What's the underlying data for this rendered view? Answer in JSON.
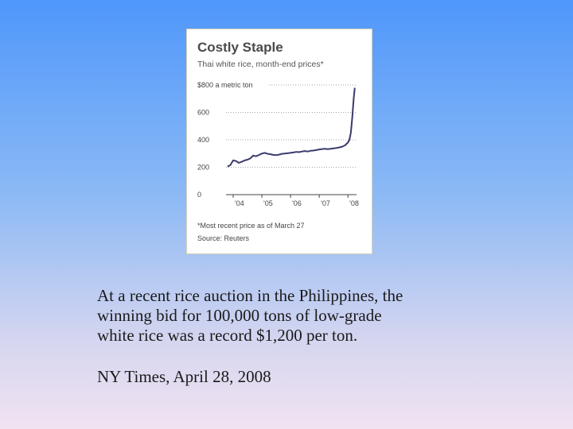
{
  "chart_data": {
    "type": "line",
    "title": "Costly Staple",
    "subtitle": "Thai white rice, month-end prices*",
    "ylabel": "",
    "xlabel": "",
    "ylim": [
      0,
      800
    ],
    "yticks": [
      0,
      200,
      400,
      600,
      800
    ],
    "ytick_labels": [
      "0",
      "200",
      "400",
      "600",
      "$800 a metric ton"
    ],
    "xlim": [
      2003.75,
      2008.3
    ],
    "xticks": [
      2004,
      2005,
      2006,
      2007,
      2008
    ],
    "xtick_labels": [
      "'04",
      "'05",
      "'06",
      "'07",
      "'08"
    ],
    "grid": "horizontal dotted",
    "series": [
      {
        "color": "#3a3a6e",
        "x": [
          2003.8,
          2003.9,
          2004.0,
          2004.1,
          2004.2,
          2004.3,
          2004.4,
          2004.5,
          2004.6,
          2004.7,
          2004.8,
          2004.9,
          2005.0,
          2005.1,
          2005.2,
          2005.3,
          2005.4,
          2005.5,
          2005.6,
          2005.7,
          2005.8,
          2005.9,
          2006.0,
          2006.1,
          2006.2,
          2006.3,
          2006.4,
          2006.5,
          2006.6,
          2006.7,
          2006.8,
          2006.9,
          2007.0,
          2007.1,
          2007.2,
          2007.3,
          2007.4,
          2007.5,
          2007.6,
          2007.7,
          2007.8,
          2007.9,
          2008.0,
          2008.05,
          2008.1,
          2008.15,
          2008.2,
          2008.24
        ],
        "y": [
          205,
          215,
          250,
          245,
          232,
          240,
          250,
          255,
          265,
          285,
          280,
          290,
          300,
          305,
          298,
          295,
          290,
          288,
          292,
          298,
          300,
          302,
          305,
          308,
          312,
          310,
          315,
          318,
          315,
          320,
          322,
          325,
          330,
          333,
          335,
          332,
          335,
          338,
          340,
          345,
          350,
          360,
          380,
          400,
          450,
          560,
          700,
          780
        ]
      }
    ],
    "footnote": "*Most recent price as of March 27",
    "source": "Source: Reuters"
  },
  "caption": {
    "line1": "At a recent rice auction in the Philippines, the",
    "line2": "winning bid for 100,000 tons of low-grade",
    "line3": "white rice was a record $1,200 per ton."
  },
  "citation": "NY Times, April 28, 2008"
}
